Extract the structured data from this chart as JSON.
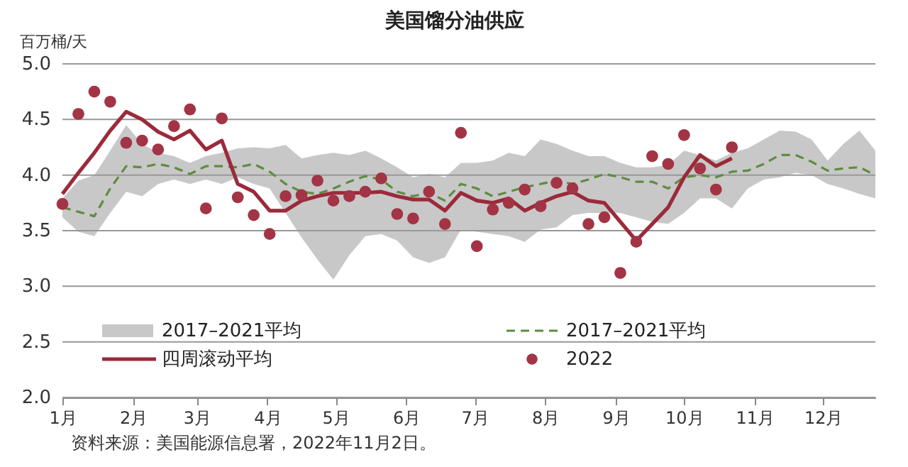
{
  "chart_data": {
    "type": "line",
    "title": "美国馏分油供应",
    "ylabel": "百万桶/天",
    "annotations": [
      "资料来源：美国能源信息署，2022年11月2日。"
    ],
    "x": [
      "--01-01",
      "--01-08",
      "--01-15",
      "--01-22",
      "--01-29",
      "--02-05",
      "--02-12",
      "--02-19",
      "--02-26",
      "--03-05",
      "--03-12",
      "--03-19",
      "--03-26",
      "--04-02",
      "--04-09",
      "--04-16",
      "--04-23",
      "--04-30",
      "--05-07",
      "--05-14",
      "--05-21",
      "--05-28",
      "--06-04",
      "--06-11",
      "--06-18",
      "--06-25",
      "--07-02",
      "--07-09",
      "--07-16",
      "--07-23",
      "--07-30",
      "--08-06",
      "--08-13",
      "--08-20",
      "--08-27",
      "--09-03",
      "--09-10",
      "--09-17",
      "--09-24",
      "--10-01",
      "--10-08",
      "--10-15",
      "--10-22",
      "--10-29",
      "--11-05",
      "--11-12",
      "--11-19",
      "--11-26",
      "--12-03",
      "--12-10",
      "--12-17",
      "--12-24"
    ],
    "xlim": [
      "--01-01",
      "--12-24"
    ],
    "xticks": [
      {
        "value": "--01-01",
        "label": "1月"
      },
      {
        "value": "--02-01",
        "label": "2月"
      },
      {
        "value": "--03-01",
        "label": "3月"
      },
      {
        "value": "--04-01",
        "label": "4月"
      },
      {
        "value": "--05-01",
        "label": "5月"
      },
      {
        "value": "--06-01",
        "label": "6月"
      },
      {
        "value": "--07-01",
        "label": "7月"
      },
      {
        "value": "--08-01",
        "label": "8月"
      },
      {
        "value": "--09-01",
        "label": "9月"
      },
      {
        "value": "--10-01",
        "label": "10月"
      },
      {
        "value": "--11-01",
        "label": "11月"
      },
      {
        "value": "--12-01",
        "label": "12月"
      }
    ],
    "ylim": [
      2,
      5
    ],
    "yticks": [
      {
        "value": 2,
        "label": "2.0"
      },
      {
        "value": 2.5,
        "label": "2.5"
      },
      {
        "value": 3,
        "label": "3.0"
      },
      {
        "value": 3.5,
        "label": "3.5"
      },
      {
        "value": 4,
        "label": "4.0"
      },
      {
        "value": 4.5,
        "label": "4.5"
      },
      {
        "value": 5,
        "label": "5.0"
      }
    ],
    "grid": "y",
    "legend": "bottom",
    "series": [
      {
        "name": "2017–2021平均",
        "type": "line",
        "color": "#5e8c3f",
        "line_style": "dashed",
        "lower": [
          3.62,
          3.49,
          3.45,
          3.66,
          3.85,
          3.81,
          3.92,
          3.96,
          3.92,
          3.96,
          3.92,
          3.98,
          3.92,
          3.88,
          3.66,
          3.44,
          3.24,
          3.06,
          3.28,
          3.45,
          3.47,
          3.41,
          3.26,
          3.21,
          3.26,
          3.51,
          3.49,
          3.47,
          3.45,
          3.4,
          3.51,
          3.53,
          3.64,
          3.66,
          3.66,
          3.66,
          3.62,
          3.58,
          3.56,
          3.66,
          3.79,
          3.79,
          3.7,
          3.88,
          3.96,
          3.98,
          4.02,
          4.0,
          3.92,
          3.88,
          3.83,
          3.79
        ],
        "upper": [
          3.79,
          3.95,
          4.0,
          4.22,
          4.45,
          4.28,
          4.2,
          4.17,
          4.11,
          4.17,
          4.2,
          4.24,
          4.25,
          4.24,
          4.27,
          4.15,
          4.18,
          4.2,
          4.18,
          4.22,
          4.15,
          4.07,
          3.98,
          4.01,
          3.98,
          4.11,
          4.11,
          4.13,
          4.2,
          4.17,
          4.32,
          4.28,
          4.22,
          4.17,
          4.17,
          4.11,
          4.07,
          4.07,
          4.09,
          4.22,
          4.18,
          4.13,
          4.2,
          4.24,
          4.32,
          4.4,
          4.39,
          4.32,
          4.13,
          4.28,
          4.4,
          4.22
        ],
        "values": [
          3.71,
          3.67,
          3.63,
          3.88,
          4.08,
          4.07,
          4.1,
          4.07,
          4.01,
          4.08,
          4.08,
          4.07,
          4.1,
          4.03,
          3.92,
          3.85,
          3.83,
          3.88,
          3.94,
          3.99,
          3.96,
          3.85,
          3.81,
          3.84,
          3.77,
          3.92,
          3.88,
          3.81,
          3.85,
          3.89,
          3.92,
          3.95,
          3.92,
          3.96,
          4.01,
          3.98,
          3.94,
          3.94,
          3.88,
          3.98,
          4.0,
          3.98,
          4.03,
          4.04,
          4.1,
          4.18,
          4.18,
          4.12,
          4.04,
          4.06,
          4.07,
          4.0
        ]
      },
      {
        "name": "四周滚动平均",
        "type": "line",
        "color": "#9b2a3a",
        "line_style": "solid",
        "values": [
          3.83,
          4.02,
          4.2,
          4.4,
          4.57,
          4.5,
          4.39,
          4.32,
          4.4,
          4.23,
          4.31,
          3.92,
          3.85,
          3.68,
          3.68,
          3.77,
          3.81,
          3.84,
          3.84,
          3.84,
          3.85,
          3.81,
          3.78,
          3.78,
          3.68,
          3.84,
          3.77,
          3.75,
          3.79,
          3.68,
          3.75,
          3.81,
          3.85,
          3.77,
          3.75,
          3.58,
          3.41,
          3.56,
          3.71,
          3.98,
          4.18,
          4.08,
          4.15,
          null,
          null,
          null,
          null,
          null,
          null,
          null,
          null,
          null
        ]
      },
      {
        "name": "2022",
        "type": "scatter",
        "color": "#a33445",
        "values": [
          3.74,
          4.55,
          4.75,
          4.66,
          4.29,
          4.31,
          4.23,
          4.44,
          4.59,
          3.7,
          4.51,
          3.8,
          3.64,
          3.47,
          3.81,
          3.82,
          3.95,
          3.77,
          3.81,
          3.85,
          3.97,
          3.65,
          3.61,
          3.85,
          3.56,
          4.38,
          3.36,
          3.69,
          3.75,
          3.87,
          3.72,
          3.93,
          3.88,
          3.56,
          3.62,
          3.12,
          3.4,
          4.17,
          4.1,
          4.36,
          4.06,
          3.87,
          4.25,
          null,
          null,
          null,
          null,
          null,
          null,
          null,
          null,
          null
        ]
      }
    ]
  }
}
